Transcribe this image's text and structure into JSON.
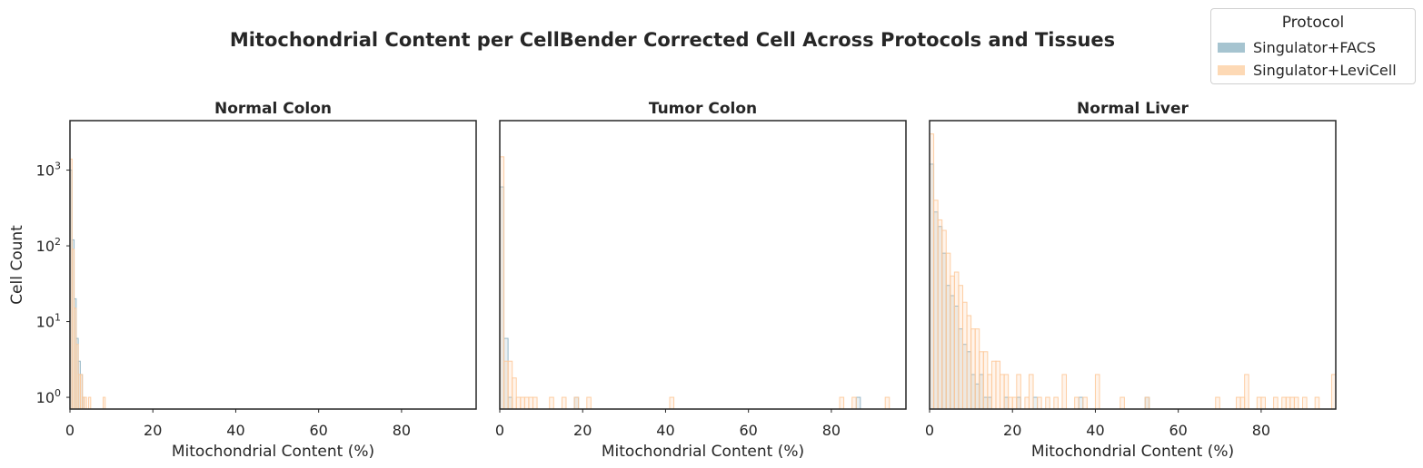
{
  "title": "Mitochondrial Content per CellBender Corrected Cell Across Protocols and Tissues",
  "legend": {
    "title": "Protocol",
    "placement": "top-right",
    "entries": [
      {
        "label": "Singulator+FACS",
        "color": "#a6c4d0"
      },
      {
        "label": "Singulator+LeviCell",
        "color": "#fdd9b5"
      }
    ]
  },
  "chart_data": [
    {
      "type": "histogram",
      "title": "Normal Colon",
      "xlabel": "Mitochondrial Content (%)",
      "ylabel": "Cell Count",
      "yscale": "log",
      "xlim": [
        0,
        98
      ],
      "ylim": [
        0.7,
        4500
      ],
      "xticks": [
        "0",
        "20",
        "40",
        "60",
        "80"
      ],
      "yticks": [
        "10^0",
        "10^1",
        "10^2",
        "10^3"
      ],
      "bin_width": 0.5,
      "series": [
        {
          "name": "Singulator+FACS",
          "color": "#8fb3c3",
          "bins": [
            [
              0,
              1000
            ],
            [
              0.5,
              120
            ],
            [
              1,
              20
            ],
            [
              1.5,
              6
            ],
            [
              2,
              3
            ],
            [
              2.5,
              2
            ],
            [
              3,
              1
            ]
          ]
        },
        {
          "name": "Singulator+LeviCell",
          "color": "#fdc99a",
          "bins": [
            [
              0,
              1400
            ],
            [
              0.5,
              90
            ],
            [
              1,
              15
            ],
            [
              1.5,
              5
            ],
            [
              2,
              2
            ],
            [
              2.5,
              2
            ],
            [
              3,
              1
            ],
            [
              3.5,
              1
            ],
            [
              4.5,
              1
            ],
            [
              8,
              1
            ]
          ]
        }
      ]
    },
    {
      "type": "histogram",
      "title": "Tumor Colon",
      "xlabel": "Mitochondrial Content (%)",
      "ylabel": "",
      "yscale": "log",
      "xlim": [
        0,
        98
      ],
      "ylim": [
        0.7,
        4500
      ],
      "xticks": [
        "0",
        "20",
        "40",
        "60",
        "80"
      ],
      "bin_width": 1,
      "series": [
        {
          "name": "Singulator+FACS",
          "color": "#8fb3c3",
          "bins": [
            [
              0,
              600
            ],
            [
              1,
              6
            ],
            [
              2,
              1
            ],
            [
              18,
              1
            ],
            [
              86,
              1
            ]
          ]
        },
        {
          "name": "Singulator+LeviCell",
          "color": "#fdc99a",
          "bins": [
            [
              0,
              1500
            ],
            [
              1,
              3
            ],
            [
              2,
              3
            ],
            [
              3,
              1.8
            ],
            [
              4,
              1
            ],
            [
              5,
              1
            ],
            [
              6,
              1
            ],
            [
              7,
              1
            ],
            [
              8,
              1
            ],
            [
              12,
              1
            ],
            [
              15,
              1
            ],
            [
              18,
              1
            ],
            [
              21,
              1
            ],
            [
              41,
              1
            ],
            [
              82,
              1
            ],
            [
              85,
              1
            ],
            [
              93,
              1
            ]
          ]
        }
      ]
    },
    {
      "type": "histogram",
      "title": "Normal Liver",
      "xlabel": "Mitochondrial Content (%)",
      "ylabel": "",
      "yscale": "log",
      "xlim": [
        0,
        98
      ],
      "ylim": [
        0.7,
        4500
      ],
      "xticks": [
        "0",
        "20",
        "40",
        "60",
        "80"
      ],
      "bin_width": 1,
      "series": [
        {
          "name": "Singulator+FACS",
          "color": "#8fb3c3",
          "bins": [
            [
              0,
              1200
            ],
            [
              1,
              280
            ],
            [
              2,
              180
            ],
            [
              3,
              80
            ],
            [
              4,
              30
            ],
            [
              5,
              22
            ],
            [
              6,
              16
            ],
            [
              7,
              8
            ],
            [
              8,
              5
            ],
            [
              9,
              4
            ],
            [
              10,
              2
            ],
            [
              11,
              1.5
            ],
            [
              12,
              2
            ],
            [
              13,
              1
            ],
            [
              14,
              1
            ],
            [
              18,
              1
            ],
            [
              21,
              1
            ],
            [
              25,
              1
            ],
            [
              36,
              1
            ],
            [
              52,
              1
            ]
          ]
        },
        {
          "name": "Singulator+LeviCell",
          "color": "#fdc99a",
          "bins": [
            [
              0,
              3000
            ],
            [
              1,
              400
            ],
            [
              2,
              220
            ],
            [
              3,
              160
            ],
            [
              4,
              80
            ],
            [
              5,
              40
            ],
            [
              6,
              45
            ],
            [
              7,
              30
            ],
            [
              8,
              18
            ],
            [
              9,
              12
            ],
            [
              10,
              8
            ],
            [
              11,
              8
            ],
            [
              12,
              4
            ],
            [
              13,
              4
            ],
            [
              14,
              2
            ],
            [
              15,
              3
            ],
            [
              16,
              3
            ],
            [
              17,
              2
            ],
            [
              18,
              2
            ],
            [
              19,
              1
            ],
            [
              20,
              1
            ],
            [
              21,
              2
            ],
            [
              23,
              1
            ],
            [
              24,
              2
            ],
            [
              26,
              1
            ],
            [
              28,
              1
            ],
            [
              30,
              1
            ],
            [
              32,
              2
            ],
            [
              35,
              1
            ],
            [
              37,
              1
            ],
            [
              40,
              2
            ],
            [
              46,
              1
            ],
            [
              52,
              1
            ],
            [
              69,
              1
            ],
            [
              74,
              1
            ],
            [
              75,
              1
            ],
            [
              76,
              2
            ],
            [
              79,
              1
            ],
            [
              80,
              1
            ],
            [
              83,
              1
            ],
            [
              85,
              1
            ],
            [
              86,
              1
            ],
            [
              87,
              1
            ],
            [
              88,
              1
            ],
            [
              90,
              1
            ],
            [
              93,
              1
            ],
            [
              97,
              2
            ]
          ]
        }
      ]
    }
  ]
}
